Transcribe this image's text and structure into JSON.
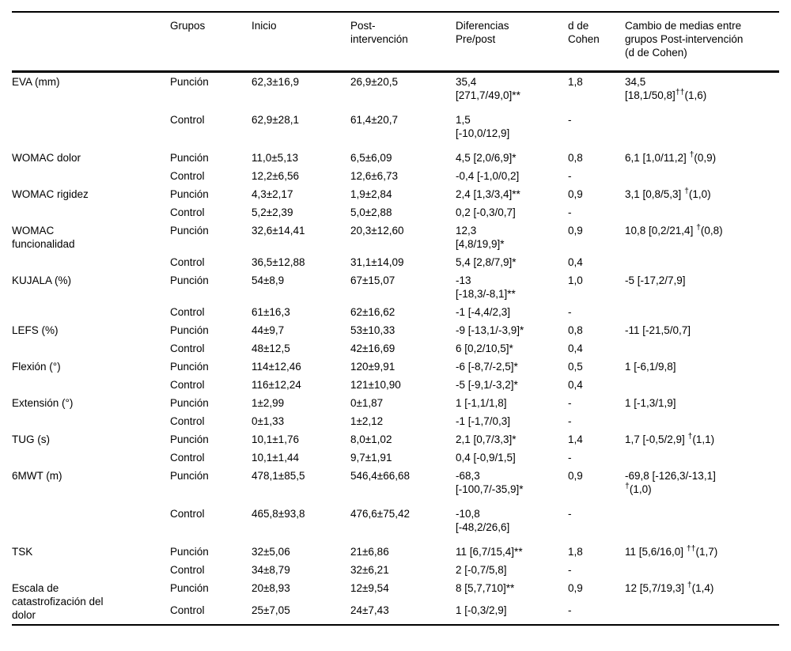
{
  "table": {
    "headers": [
      "",
      "Grupos",
      "Inicio",
      "Post-\nintervención",
      "Diferencias\nPre/post",
      "d de\nCohen",
      "Cambio de medias entre\ngrupos Post-intervención\n(d de Cohen)"
    ],
    "groups": [
      {
        "label": "EVA (mm)",
        "rows": [
          {
            "grupo": "Punción",
            "inicio": "62,3±16,9",
            "post": "26,9±20,5",
            "dif": "35,4\n[271,7/49,0]**",
            "cohen": "1,8",
            "cambio": {
              "main": "34,5\n[18,1/50,8]",
              "sup": "††",
              "tail": "(1,6)"
            },
            "gap": true
          },
          {
            "grupo": "Control",
            "inicio": "62,9±28,1",
            "post": "61,4±20,7",
            "dif": "1,5\n[-10,0/12,9]",
            "cohen": "-",
            "cambio": null,
            "gap": true
          }
        ]
      },
      {
        "label": "WOMAC dolor",
        "rows": [
          {
            "grupo": "Punción",
            "inicio": "11,0±5,13",
            "post": "6,5±6,09",
            "dif": "4,5 [2,0/6,9]*",
            "cohen": "0,8",
            "cambio": {
              "main": "6,1 [1,0/11,2] ",
              "sup": "†",
              "tail": "(0,9)"
            },
            "gap": false
          },
          {
            "grupo": "Control",
            "inicio": "12,2±6,56",
            "post": "12,6±6,73",
            "dif": "-0,4 [-1,0/0,2]",
            "cohen": "-",
            "cambio": null,
            "gap": false
          }
        ]
      },
      {
        "label": "WOMAC rigidez",
        "rows": [
          {
            "grupo": "Punción",
            "inicio": "4,3±2,17",
            "post": "1,9±2,84",
            "dif": "2,4 [1,3/3,4]**",
            "cohen": "0,9",
            "cambio": {
              "main": "3,1 [0,8/5,3] ",
              "sup": "†",
              "tail": "(1,0)"
            },
            "gap": false
          },
          {
            "grupo": "Control",
            "inicio": "5,2±2,39",
            "post": "5,0±2,88",
            "dif": "0,2 [-0,3/0,7]",
            "cohen": "-",
            "cambio": null,
            "gap": false
          }
        ]
      },
      {
        "label": "WOMAC\nfuncionalidad",
        "rows": [
          {
            "grupo": "Punción",
            "inicio": "32,6±14,41",
            "post": "20,3±12,60",
            "dif": "12,3\n[4,8/19,9]*",
            "cohen": "0,9",
            "cambio": {
              "main": "10,8 [0,2/21,4] ",
              "sup": "†",
              "tail": "(0,8)"
            },
            "gap": false
          },
          {
            "grupo": "Control",
            "inicio": "36,5±12,88",
            "post": "31,1±14,09",
            "dif": "5,4 [2,8/7,9]*",
            "cohen": "0,4",
            "cambio": null,
            "gap": false
          }
        ]
      },
      {
        "label": "KUJALA (%)",
        "rows": [
          {
            "grupo": "Punción",
            "inicio": "54±8,9",
            "post": "67±15,07",
            "dif": "-13\n[-18,3/-8,1]**",
            "cohen": "1,0",
            "cambio": {
              "main": "-5 [-17,2/7,9]"
            },
            "gap": false
          },
          {
            "grupo": "Control",
            "inicio": "61±16,3",
            "post": "62±16,62",
            "dif": "-1 [-4,4/2,3]",
            "cohen": "-",
            "cambio": null,
            "gap": false
          }
        ]
      },
      {
        "label": "LEFS (%)",
        "rows": [
          {
            "grupo": "Punción",
            "inicio": "44±9,7",
            "post": "53±10,33",
            "dif": "-9 [-13,1/-3,9]*",
            "cohen": "0,8",
            "cambio": {
              "main": "-11 [-21,5/0,7]"
            },
            "gap": false
          },
          {
            "grupo": "Control",
            "inicio": "48±12,5",
            "post": "42±16,69",
            "dif": "6 [0,2/10,5]*",
            "cohen": "0,4",
            "cambio": null,
            "gap": false
          }
        ]
      },
      {
        "label": "Flexión (°)",
        "rows": [
          {
            "grupo": "Punción",
            "inicio": "114±12,46",
            "post": "120±9,91",
            "dif": "-6 [-8,7/-2,5]*",
            "cohen": "0,5",
            "cambio": {
              "main": "1 [-6,1/9,8]"
            },
            "gap": false
          },
          {
            "grupo": "Control",
            "inicio": "116±12,24",
            "post": "121±10,90",
            "dif": "-5 [-9,1/-3,2]*",
            "cohen": "0,4",
            "cambio": null,
            "gap": false
          }
        ]
      },
      {
        "label": "Extensión (°)",
        "rows": [
          {
            "grupo": "Punción",
            "inicio": "1±2,99",
            "post": "0±1,87",
            "dif": "1 [-1,1/1,8]",
            "cohen": "-",
            "cambio": {
              "main": "1 [-1,3/1,9]"
            },
            "gap": false
          },
          {
            "grupo": "Control",
            "inicio": "0±1,33",
            "post": "1±2,12",
            "dif": "-1 [-1,7/0,3]",
            "cohen": "-",
            "cambio": null,
            "gap": false
          }
        ]
      },
      {
        "label": "TUG (s)",
        "rows": [
          {
            "grupo": "Punción",
            "inicio": "10,1±1,76",
            "post": "8,0±1,02",
            "dif": "2,1 [0,7/3,3]*",
            "cohen": "1,4",
            "cambio": {
              "main": "1,7 [-0,5/2,9] ",
              "sup": "†",
              "tail": "(1,1)"
            },
            "gap": false
          },
          {
            "grupo": "Control",
            "inicio": "10,1±1,44",
            "post": "9,7±1,91",
            "dif": "0,4 [-0,9/1,5]",
            "cohen": "-",
            "cambio": null,
            "gap": false
          }
        ]
      },
      {
        "label": "6MWT (m)",
        "rows": [
          {
            "grupo": "Punción",
            "inicio": "478,1±85,5",
            "post": "546,4±66,68",
            "dif": "-68,3\n[-100,7/-35,9]*",
            "cohen": "0,9",
            "cambio": {
              "main": "-69,8 [-126,3/-13,1]\n",
              "sup": "†",
              "tail": "(1,0)"
            },
            "gap": true
          },
          {
            "grupo": "Control",
            "inicio": "465,8±93,8",
            "post": "476,6±75,42",
            "dif": "-10,8\n[-48,2/26,6]",
            "cohen": "-",
            "cambio": null,
            "gap": true
          }
        ]
      },
      {
        "label": "TSK",
        "rows": [
          {
            "grupo": "Punción",
            "inicio": "32±5,06",
            "post": "21±6,86",
            "dif": "11 [6,7/15,4]**",
            "cohen": "1,8",
            "cambio": {
              "main": "11 [5,6/16,0] ",
              "sup": "††",
              "tail": "(1,7)"
            },
            "gap": false
          },
          {
            "grupo": "Control",
            "inicio": "34±8,79",
            "post": "32±6,21",
            "dif": "2 [-0,7/5,8]",
            "cohen": "-",
            "cambio": null,
            "gap": false
          }
        ]
      },
      {
        "label": "Escala de\ncatastrofización del\ndolor",
        "rows": [
          {
            "grupo": "Punción",
            "inicio": "20±8,93",
            "post": "12±9,54",
            "dif": "8 [5,7,710]**",
            "cohen": "0,9",
            "cambio": {
              "main": "12 [5,7/19,3] ",
              "sup": "†",
              "tail": "(1,4)"
            },
            "gap": false
          },
          {
            "grupo": "Control",
            "inicio": "25±7,05",
            "post": "24±7,43",
            "dif": "1 [-0,3/2,9]",
            "cohen": "-",
            "cambio": null,
            "gap": false
          }
        ]
      }
    ]
  }
}
